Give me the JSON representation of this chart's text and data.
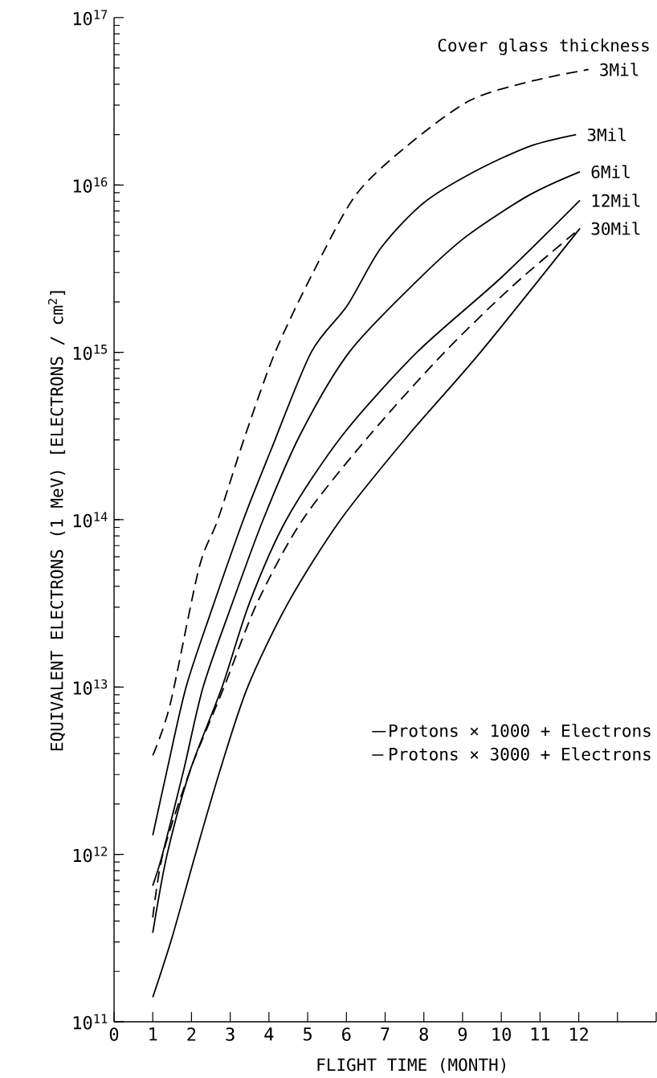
{
  "chart_data": {
    "type": "line",
    "xlabel": "FLIGHT TIME (MONTH)",
    "ylabel": "EQUIVALENT ELECTRONS (1 MeV) [ELECTRONS / cm$^{2}$]",
    "annotations": [
      "Cover glass thickness",
      "Protons × 1000 + Electrons",
      "Protons × 3000 + Electrons"
    ],
    "log": "y",
    "legend": "right",
    "marker": "none",
    "xlim": [
      0,
      14
    ],
    "xticks": [
      0,
      1,
      2,
      3,
      4,
      5,
      6,
      7,
      8,
      9,
      10,
      11,
      12,
      {
        "value": 13,
        "label": null
      },
      {
        "value": 14,
        "label": null
      }
    ],
    "ylim": [
      100000000000.0,
      1e+17
    ],
    "yticks": [
      {
        "value": 100000000000.0,
        "label": "10$^{11}$"
      },
      {
        "value": 1000000000000.0,
        "label": "10$^{12}$"
      },
      {
        "value": 10000000000000.0,
        "label": "10$^{13}$"
      },
      {
        "value": 100000000000000.0,
        "label": "10$^{14}$"
      },
      {
        "value": 1000000000000000.0,
        "label": "10$^{15}$"
      },
      {
        "value": 1e+16,
        "label": "10$^{16}$"
      },
      {
        "value": 1e+17,
        "label": "10$^{17}$"
      }
    ],
    "series": [
      {
        "name": "3Mil",
        "color": "#000000",
        "line_style": "solid",
        "x": [
          1,
          1.37,
          1.86,
          2.5,
          3.34,
          4.05,
          5.09,
          6.02,
          6.89,
          7.99,
          9.3,
          10.72,
          11.93
        ],
        "values": [
          1300000000000.0,
          3200000000000.0,
          10000000000000.0,
          28000000000000.0,
          100000000000000.0,
          260000000000000.0,
          1000000000000000.0,
          1900000000000000.0,
          4200000000000000.0,
          7800000000000000.0,
          1.2e+16,
          1.7e+16,
          2e+16
        ]
      },
      {
        "name": "6Mil",
        "color": "#000000",
        "line_style": "solid",
        "x": [
          1,
          1.25,
          1.8,
          2.3,
          3.06,
          3.85,
          4.8,
          6.07,
          7.77,
          9.08,
          10.72,
          12.03
        ],
        "values": [
          650000000000.0,
          1000000000000.0,
          3200000000000.0,
          10000000000000.0,
          32000000000000.0,
          100000000000000.0,
          320000000000000.0,
          1000000000000000.0,
          2600000000000000.0,
          4900000000000000.0,
          8700000000000000.0,
          1.2e+16
        ]
      },
      {
        "name": "12Mil",
        "color": "#000000",
        "line_style": "solid",
        "x": [
          1,
          1.37,
          1.97,
          2.79,
          3.5,
          4.45,
          5.9,
          7.82,
          10,
          12.03
        ],
        "values": [
          340000000000.0,
          1000000000000.0,
          3200000000000.0,
          10000000000000.0,
          32000000000000.0,
          100000000000000.0,
          320000000000000.0,
          1000000000000000.0,
          2800000000000000.0,
          8100000000000000.0
        ]
      },
      {
        "name": "30Mil",
        "color": "#000000",
        "line_style": "solid",
        "x": [
          1,
          1.5,
          2.1,
          2.74,
          3.45,
          4.5,
          5.85,
          7.6,
          9.46,
          12.03
        ],
        "values": [
          140000000000.0,
          320000000000.0,
          1000000000000.0,
          3200000000000.0,
          10000000000000.0,
          32000000000000.0,
          100000000000000.0,
          320000000000000.0,
          1000000000000000.0,
          5500000000000000.0
        ]
      },
      {
        "name": "3Mil",
        "color": "#000000",
        "line_style": "dashed",
        "x": [
          1,
          1.45,
          2.19,
          2.68,
          3.39,
          4.16,
          5.14,
          6.24,
          7.55,
          9.19,
          10.83,
          12.25
        ],
        "values": [
          3900000000000.0,
          7900000000000.0,
          51000000000000.0,
          100000000000000.0,
          320000000000000.0,
          1000000000000000.0,
          3000000000000000.0,
          8700000000000000.0,
          1.7e+16,
          3.2e+16,
          4.2e+16,
          4.9e+16
        ]
      },
      {
        "color": "#000000",
        "line_style": "dashed",
        "x": [
          1,
          1.26,
          1.97,
          2.84,
          3.7,
          4.87,
          6.6,
          8.53,
          10.3,
          12.03
        ],
        "values": [
          420000000000.0,
          1000000000000.0,
          3200000000000.0,
          10000000000000.0,
          32000000000000.0,
          100000000000000.0,
          320000000000000.0,
          1000000000000000.0,
          2500000000000000.0,
          5500000000000000.0
        ]
      }
    ]
  }
}
